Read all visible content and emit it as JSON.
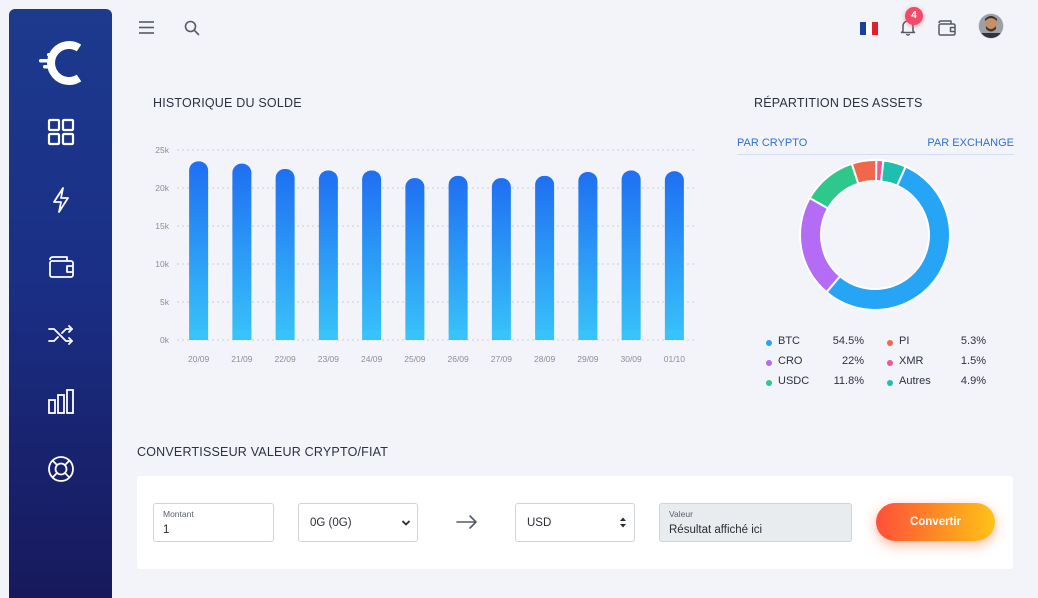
{
  "topbar": {
    "notification_count": "4",
    "language": "fr"
  },
  "sidebar": {
    "items": [
      {
        "icon": "dashboard-icon"
      },
      {
        "icon": "lightning-icon"
      },
      {
        "icon": "wallet-icon"
      },
      {
        "icon": "shuffle-icon"
      },
      {
        "icon": "bar-chart-icon"
      },
      {
        "icon": "lifebuoy-icon"
      }
    ]
  },
  "balance": {
    "title": "HISTORIQUE DU SOLDE"
  },
  "assets": {
    "title": "RÉPARTITION DES ASSETS",
    "tabs": [
      "PAR CRYPTO",
      "PAR EXCHANGE"
    ],
    "legend": [
      {
        "name": "BTC",
        "pct": "54.5%",
        "color": "#26a4f5"
      },
      {
        "name": "CRO",
        "pct": "22%",
        "color": "#b36cf3"
      },
      {
        "name": "USDC",
        "pct": "11.8%",
        "color": "#2ec98a"
      },
      {
        "name": "PI",
        "pct": "5.3%",
        "color": "#f0674e"
      },
      {
        "name": "XMR",
        "pct": "1.5%",
        "color": "#f25694"
      },
      {
        "name": "Autres",
        "pct": "4.9%",
        "color": "#1fbfb0"
      }
    ]
  },
  "converter": {
    "title": "CONVERTISSEUR VALEUR CRYPTO/FIAT",
    "amount_label": "Montant",
    "amount_value": "1",
    "crypto_select": "0G (0G)",
    "fiat_select": "USD",
    "result_label": "Valeur",
    "result_placeholder": "Résultat affiché ici",
    "button": "Convertir"
  },
  "chart_data": [
    {
      "type": "bar",
      "categories": [
        "20/09",
        "21/09",
        "22/09",
        "23/09",
        "24/09",
        "25/09",
        "26/09",
        "27/09",
        "28/09",
        "29/09",
        "30/09",
        "01/10"
      ],
      "values": [
        23500,
        23200,
        22500,
        22300,
        22300,
        21300,
        21600,
        21300,
        21600,
        22100,
        22300,
        22200
      ],
      "title": "HISTORIQUE DU SOLDE",
      "yticks": [
        "0k",
        "5k",
        "10k",
        "15k",
        "20k",
        "25k"
      ],
      "ylim": [
        0,
        25000
      ],
      "grid": true,
      "colors": {
        "top": "#1f6ff2",
        "bottom": "#38c3fa"
      }
    },
    {
      "type": "pie",
      "title": "RÉPARTITION DES ASSETS",
      "categories": [
        "BTC",
        "CRO",
        "USDC",
        "PI",
        "XMR",
        "Autres"
      ],
      "values": [
        54.5,
        22,
        11.8,
        5.3,
        1.5,
        4.9
      ],
      "colors": [
        "#26a4f5",
        "#b36cf3",
        "#2ec98a",
        "#f0674e",
        "#f25694",
        "#1fbfb0"
      ],
      "donut": true
    }
  ]
}
